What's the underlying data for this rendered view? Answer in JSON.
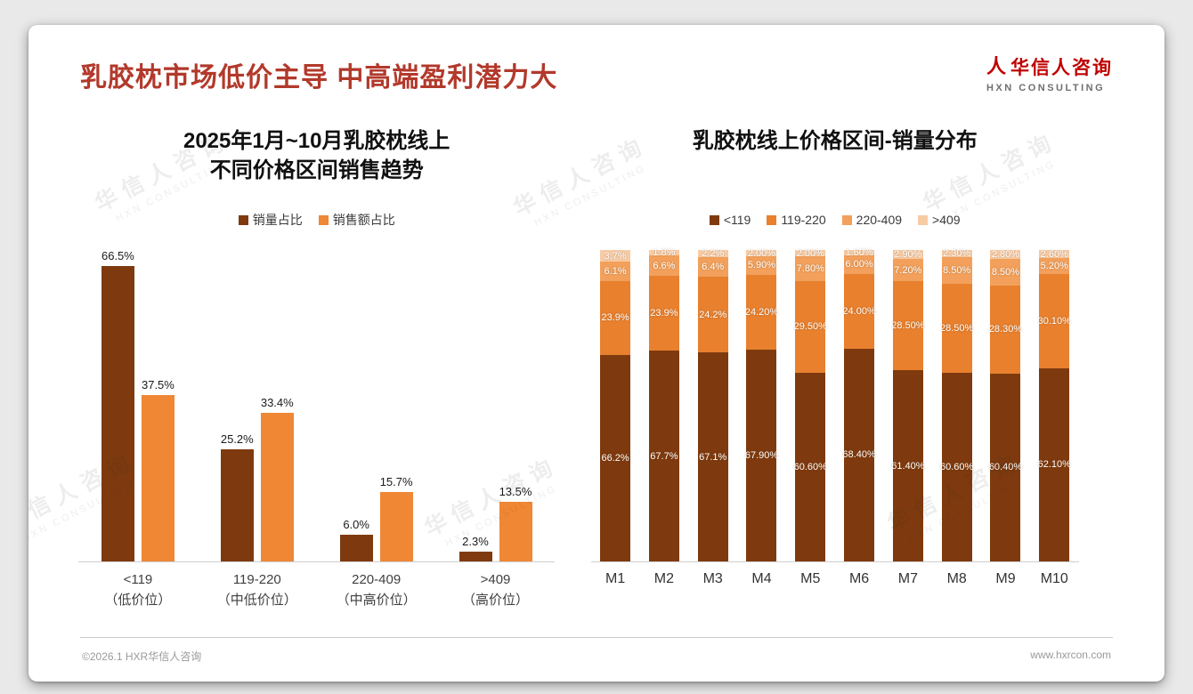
{
  "page": {
    "title": "乳胶枕市场低价主导 中高端盈利潜力大",
    "logo": {
      "cn": "华信人咨询",
      "en": "HXN CONSULTING"
    },
    "watermark": {
      "cn": "华信人咨询",
      "en": "HXN CONSULTING"
    },
    "footer": {
      "left": "©2026.1 HXR华信人咨询",
      "right": "www.hxrcon.com"
    }
  },
  "icons": {
    "logo": "人"
  },
  "colors": {
    "accent_title": "#B2392B",
    "logo_red": "#C00000",
    "axis_line": "#CFCFCF",
    "page_bg": "#E9E9E9"
  },
  "chart_data": [
    {
      "type": "bar",
      "title_lines": [
        "2025年1月~10月乳胶枕线上",
        "不同价格区间销售趋势"
      ],
      "categories": [
        [
          "<119",
          "（低价位）"
        ],
        [
          "119-220",
          "（中低价位）"
        ],
        [
          "220-409",
          "（中高价位）"
        ],
        [
          ">409",
          "（高价位）"
        ]
      ],
      "ylim": [
        0,
        70
      ],
      "grid": false,
      "legend_position": "top",
      "series": [
        {
          "name": "销量占比",
          "color": "#7E3A0E",
          "values": [
            66.5,
            25.2,
            6.0,
            2.3
          ],
          "labels": [
            "66.5%",
            "25.2%",
            "6.0%",
            "2.3%"
          ]
        },
        {
          "name": "销售额占比",
          "color": "#EF8735",
          "values": [
            37.5,
            33.4,
            15.7,
            13.5
          ],
          "labels": [
            "37.5%",
            "33.4%",
            "15.7%",
            "13.5%"
          ]
        }
      ]
    },
    {
      "type": "bar",
      "stacked": true,
      "percent_stacked": true,
      "title": "乳胶枕线上价格区间-销量分布",
      "categories": [
        "M1",
        "M2",
        "M3",
        "M4",
        "M5",
        "M6",
        "M7",
        "M8",
        "M9",
        "M10"
      ],
      "ylim": [
        0,
        100
      ],
      "grid": false,
      "legend_position": "top",
      "series": [
        {
          "name": "<119",
          "color": "#7E3A0E",
          "values": [
            66.2,
            67.7,
            67.1,
            67.9,
            60.6,
            68.4,
            61.4,
            60.6,
            60.4,
            62.1
          ],
          "labels": [
            "66.2%",
            "67.7%",
            "67.1%",
            "67.90%",
            "60.60%",
            "68.40%",
            "61.40%",
            "60.60%",
            "60.40%",
            "62.10%"
          ]
        },
        {
          "name": "119-220",
          "color": "#E8802E",
          "values": [
            23.9,
            23.9,
            24.2,
            24.2,
            29.5,
            24.0,
            28.5,
            28.5,
            28.3,
            30.1
          ],
          "labels": [
            "23.9%",
            "23.9%",
            "24.2%",
            "24.20%",
            "29.50%",
            "24.00%",
            "28.50%",
            "28.50%",
            "28.30%",
            "30.10%"
          ]
        },
        {
          "name": "220-409",
          "color": "#F2A05B",
          "values": [
            6.1,
            6.6,
            6.4,
            5.9,
            7.8,
            6.0,
            7.2,
            8.5,
            8.5,
            5.2
          ],
          "labels": [
            "6.1%",
            "6.6%",
            "6.4%",
            "5.90%",
            "7.80%",
            "6.00%",
            "7.20%",
            "8.50%",
            "8.50%",
            "5.20%"
          ]
        },
        {
          "name": ">409",
          "color": "#F7CBA4",
          "values": [
            3.7,
            1.8,
            2.2,
            2.0,
            2.0,
            1.6,
            2.9,
            2.3,
            2.8,
            2.6
          ],
          "labels": [
            "3.7%",
            "1.8%",
            "2.2%",
            "2.00%",
            "2.00%",
            "1.60%",
            "2.90%",
            "2.30%",
            "2.80%",
            "2.60%"
          ]
        }
      ]
    }
  ]
}
